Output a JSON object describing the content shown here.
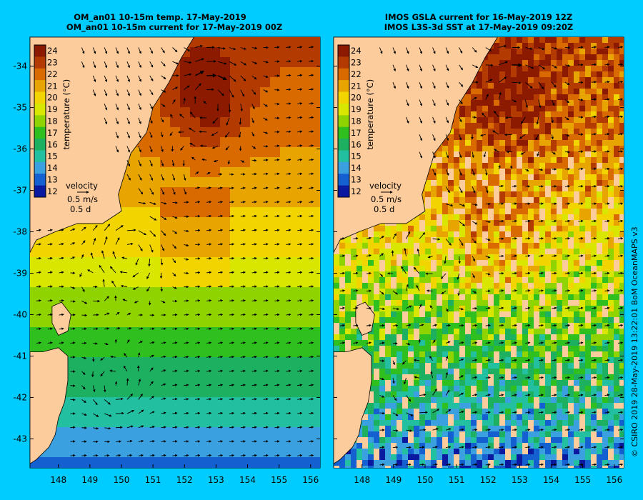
{
  "panels": [
    {
      "id": "model",
      "title_line1": "OM_an01 10-15m temp. 17-May-2019",
      "title_line2": "OM_an01 10-15m current for 17-May-2019 00Z"
    },
    {
      "id": "observed",
      "title_line1": "IMOS GSLA current for 16-May-2019 12Z",
      "title_line2": "IMOS L3S-3d SST at 17-May-2019 09:20Z"
    }
  ],
  "colorbar": {
    "label": "temperature (°C)",
    "ticks": [
      "24",
      "23",
      "22",
      "21",
      "20",
      "19",
      "18",
      "17",
      "16",
      "15",
      "14",
      "13",
      "12"
    ],
    "colors": [
      "#8b1a00",
      "#b33a00",
      "#d96a00",
      "#e8a400",
      "#f2d400",
      "#d9e600",
      "#8fd400",
      "#2fc020",
      "#1cb060",
      "#22c0a0",
      "#3aa0e0",
      "#1560d0",
      "#0a1aa0"
    ]
  },
  "velocity_key": {
    "label": "velocity",
    "speed": "0.5 m/s",
    "duration": "0.5 d"
  },
  "map_data": {
    "lat_ticks": [
      "-34",
      "-35",
      "-36",
      "-37",
      "-38",
      "-39",
      "-40",
      "-41",
      "-42",
      "-43"
    ],
    "lon_ticks": [
      "148",
      "149",
      "150",
      "151",
      "152",
      "153",
      "154",
      "155",
      "156"
    ],
    "lat_range": [
      -43.7,
      -33.3
    ],
    "lon_range": [
      147.1,
      156.3
    ],
    "features": [
      "warm-core eddy near 152.7E 34.7S",
      "cold-core eddy near 149.8E 41.8S",
      "warm water 20-24°C north",
      "cool water 12-15°C south"
    ]
  },
  "land_color": "#fccc9c",
  "credit": "© CSIRO 2019   28-May-2019 13:22:01 BoM OceanMAPS v3"
}
